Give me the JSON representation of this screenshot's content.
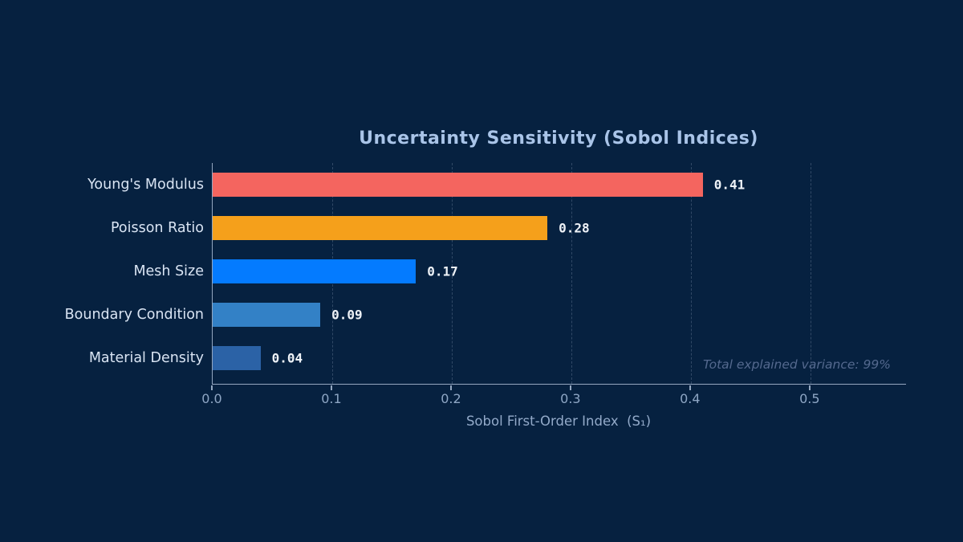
{
  "chart_data": {
    "type": "bar",
    "orientation": "horizontal",
    "title": "Uncertainty Sensitivity (Sobol Indices)",
    "xlabel": "Sobol First-Order Index  (S₁)",
    "categories": [
      "Young's Modulus",
      "Poisson Ratio",
      "Mesh Size",
      "Boundary Condition",
      "Material Density"
    ],
    "values": [
      0.41,
      0.28,
      0.17,
      0.09,
      0.04
    ],
    "value_labels": [
      "0.41",
      "0.28",
      "0.17",
      "0.09",
      "0.04"
    ],
    "bar_colors": [
      "#f4655f",
      "#f5a01b",
      "#047bff",
      "#3381c6",
      "#2b62a6"
    ],
    "xlim": [
      0,
      0.58
    ],
    "xticks": [
      0.0,
      0.1,
      0.2,
      0.3,
      0.4,
      0.5
    ],
    "xtick_labels": [
      "0.0",
      "0.1",
      "0.2",
      "0.3",
      "0.4",
      "0.5"
    ],
    "grid": "vertical-dashed",
    "legend": "none",
    "annotation": "Total explained variance: 99%",
    "colors": {
      "background": "#062140",
      "title": "#a9c4e8",
      "category_label": "#d9e4f3",
      "value_label": "#eef2f7",
      "tick_label": "#8ea6c4",
      "axis_line": "#94a7c0",
      "gridline": "rgba(148,167,192,0.30)",
      "annotation": "#54698e"
    }
  }
}
